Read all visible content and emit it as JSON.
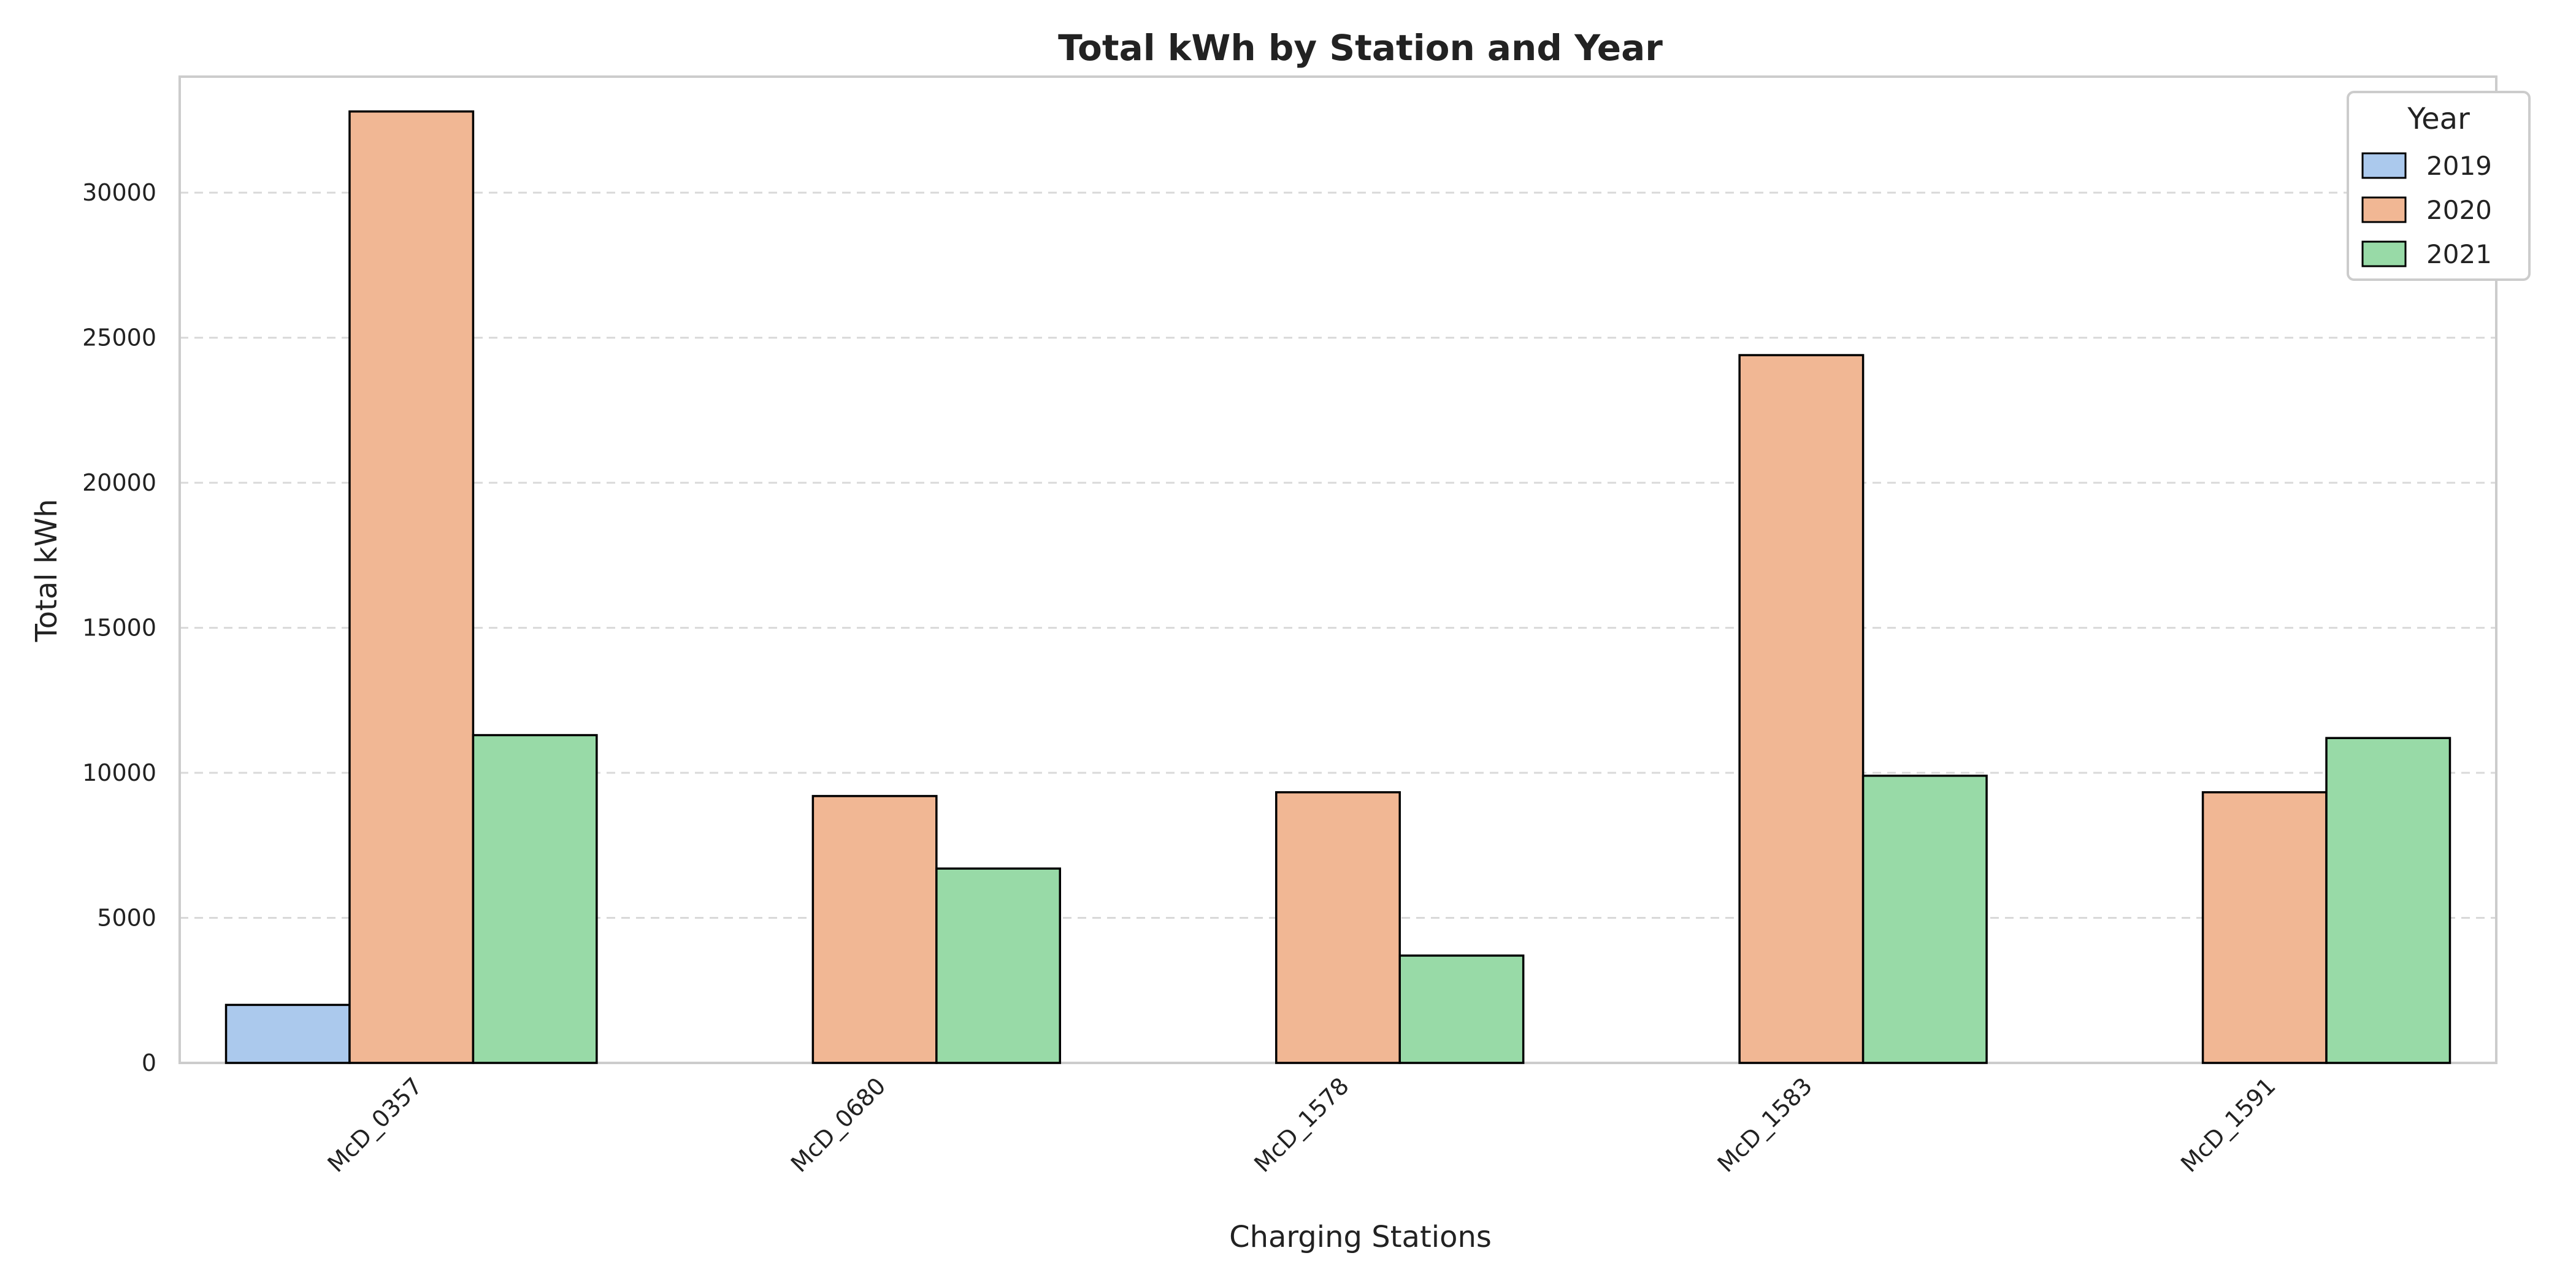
{
  "chart_data": {
    "type": "bar",
    "title": "Total kWh by Station and Year",
    "xlabel": "Charging Stations",
    "ylabel": "Total kWh",
    "categories": [
      "McD_0357",
      "McD_0680",
      "McD_1578",
      "McD_1583",
      "McD_1591"
    ],
    "series": [
      {
        "name": "2019",
        "color": "#abc9ed",
        "values": [
          2000,
          0,
          0,
          0,
          0
        ]
      },
      {
        "name": "2020",
        "color": "#f1b794",
        "values": [
          32800,
          9200,
          9330,
          24400,
          9330
        ]
      },
      {
        "name": "2021",
        "color": "#98daa7",
        "values": [
          11300,
          6700,
          3700,
          9900,
          11200
        ]
      }
    ],
    "ylim": [
      0,
      34000
    ],
    "yticks": [
      0,
      5000,
      10000,
      15000,
      20000,
      25000,
      30000
    ],
    "grid": "horizontal-dashed",
    "legend": {
      "title": "Year",
      "placement": "top-right"
    }
  }
}
